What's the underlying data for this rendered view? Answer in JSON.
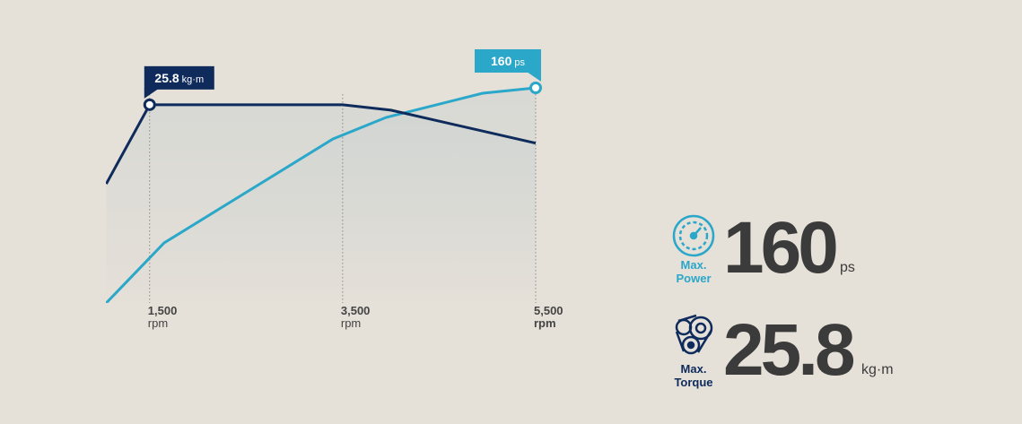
{
  "chart_data": {
    "type": "line",
    "xlim": [
      1000,
      5500
    ],
    "xticks": [
      {
        "value": 1500,
        "label": "1,500"
      },
      {
        "value": 3500,
        "label": "3,500"
      },
      {
        "value": 5500,
        "label": "5,500"
      }
    ],
    "x_unit": "rpm",
    "ylim": [
      0,
      200
    ],
    "y2lim": [
      0,
      35
    ],
    "series": [
      {
        "color": "#2aa7c9",
        "axis": "y",
        "unit": "ps",
        "x": [
          1050,
          1650,
          3400,
          3950,
          4950,
          5500
        ],
        "values": [
          0,
          44.7,
          122,
          138,
          156,
          160
        ],
        "value_labels": [
          null,
          null,
          null,
          null,
          null,
          "160"
        ]
      },
      {
        "color": "#0e2b5c",
        "axis": "y2",
        "unit": "kg·m",
        "x": [
          1050,
          1500,
          3500,
          4000,
          5500
        ],
        "values": [
          15.5,
          25.8,
          25.8,
          25.1,
          20.8
        ],
        "value_labels": [
          null,
          "25.8",
          null,
          null,
          null
        ]
      }
    ]
  },
  "summary": [
    {
      "label_lines": [
        "Max.",
        "Power"
      ],
      "value": 160,
      "unit": "ps"
    },
    {
      "label_lines": [
        "Max.",
        "Torque"
      ],
      "value": 25.8,
      "unit": "kg·m"
    }
  ]
}
